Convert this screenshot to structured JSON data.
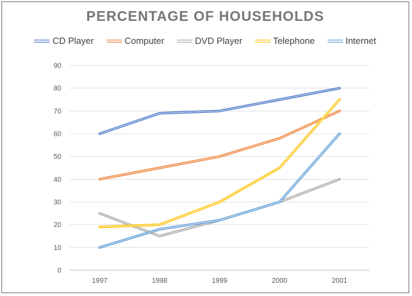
{
  "chart_data": {
    "type": "line",
    "title": "PERCENTAGE OF HOUSEHOLDS",
    "categories": [
      "1997",
      "1998",
      "1999",
      "2000",
      "2001"
    ],
    "ylim": [
      0,
      90
    ],
    "yticks": [
      0,
      10,
      20,
      30,
      40,
      50,
      60,
      70,
      80,
      90
    ],
    "grid": "horizontal",
    "legend_position": "top",
    "series": [
      {
        "name": "CD Player",
        "color": "#4472c4",
        "values": [
          60,
          69,
          70,
          75,
          80
        ]
      },
      {
        "name": "Computer",
        "color": "#ed7d31",
        "values": [
          40,
          45,
          50,
          58,
          70
        ]
      },
      {
        "name": "DVD Player",
        "color": "#a5a5a5",
        "values": [
          25,
          15,
          22,
          30,
          40
        ]
      },
      {
        "name": "Telephone",
        "color": "#ffc000",
        "values": [
          19,
          20,
          30,
          45,
          75
        ]
      },
      {
        "name": "Internet",
        "color": "#5b9bd5",
        "values": [
          10,
          18,
          22,
          30,
          60
        ]
      }
    ]
  }
}
